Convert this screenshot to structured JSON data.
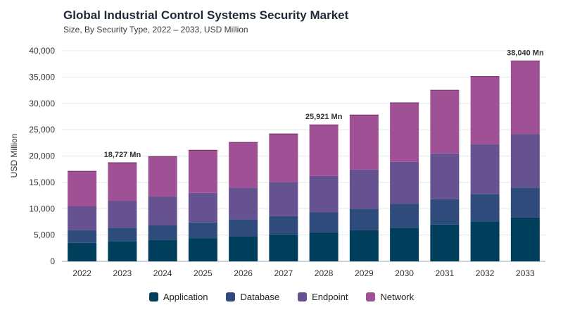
{
  "chart_data": {
    "type": "bar",
    "stacked": true,
    "title": "Global Industrial Control Systems Security Market",
    "subtitle": "Size, By Security Type, 2022 – 2033, USD Million",
    "ylabel": "USD Million",
    "xlabel": "",
    "ylim": [
      0,
      40000
    ],
    "yticks": [
      "0",
      "5,000",
      "10,000",
      "15,000",
      "20,000",
      "25,000",
      "30,000",
      "35,000",
      "40,000"
    ],
    "ytick_values": [
      0,
      5000,
      10000,
      15000,
      20000,
      25000,
      30000,
      35000,
      40000
    ],
    "grid": true,
    "legend_position": "bottom",
    "categories": [
      "2022",
      "2023",
      "2024",
      "2025",
      "2026",
      "2027",
      "2028",
      "2029",
      "2030",
      "2031",
      "2032",
      "2033"
    ],
    "series": [
      {
        "name": "Application",
        "color": "#003f5c",
        "values": [
          3500,
          3800,
          4100,
          4400,
          4800,
          5100,
          5500,
          5900,
          6400,
          7000,
          7600,
          8300
        ]
      },
      {
        "name": "Database",
        "color": "#2f4b7c",
        "values": [
          2400,
          2600,
          2800,
          3000,
          3200,
          3500,
          3800,
          4100,
          4500,
          4800,
          5200,
          5700
        ]
      },
      {
        "name": "Endpoint",
        "color": "#665191",
        "values": [
          4600,
          5100,
          5400,
          5600,
          6000,
          6500,
          6900,
          7400,
          8000,
          8700,
          9500,
          10200
        ]
      },
      {
        "name": "Network",
        "color": "#a05195",
        "values": [
          6600,
          7227,
          7600,
          8100,
          8600,
          9100,
          9721,
          10400,
          11200,
          12000,
          12800,
          13840
        ]
      }
    ],
    "annotations": [
      {
        "category": "2023",
        "text": "18,727 Mn"
      },
      {
        "category": "2028",
        "text": "25,921 Mn"
      },
      {
        "category": "2033",
        "text": "38,040 Mn"
      }
    ]
  }
}
